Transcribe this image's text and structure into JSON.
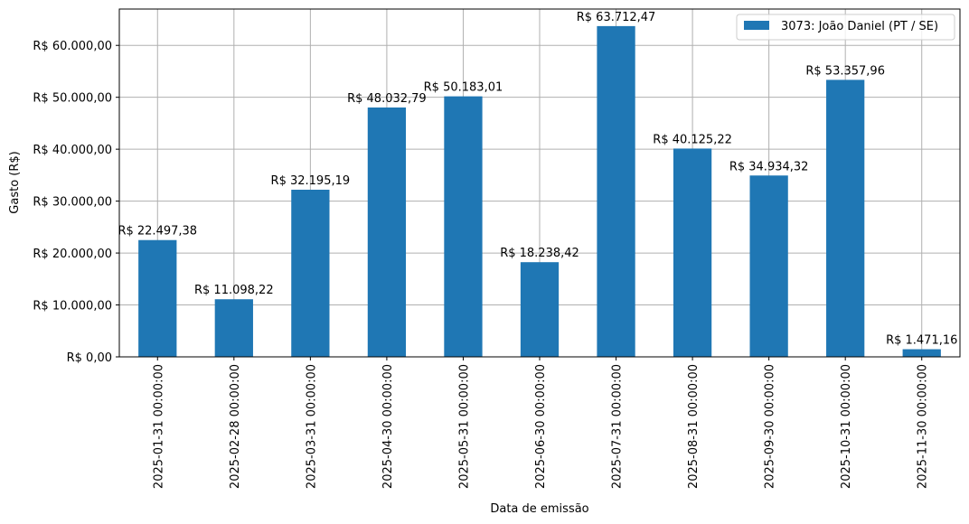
{
  "chart_data": {
    "type": "bar",
    "title": "",
    "xlabel": "Data de emissão",
    "ylabel": "Gasto (R$)",
    "ylim": [
      0,
      67000
    ],
    "grid": true,
    "legend_position": "upper right",
    "bar_color": "#1f77b4",
    "categories": [
      "2025-01-31 00:00:00",
      "2025-02-28 00:00:00",
      "2025-03-31 00:00:00",
      "2025-04-30 00:00:00",
      "2025-05-31 00:00:00",
      "2025-06-30 00:00:00",
      "2025-07-31 00:00:00",
      "2025-08-31 00:00:00",
      "2025-09-30 00:00:00",
      "2025-10-31 00:00:00",
      "2025-11-30 00:00:00"
    ],
    "series": [
      {
        "name": "3073: João Daniel (PT / SE)",
        "values": [
          22497.38,
          11098.22,
          32195.19,
          48032.79,
          50183.01,
          18238.42,
          63712.47,
          40125.22,
          34934.32,
          53357.96,
          1471.16
        ],
        "value_labels": [
          "R$ 22.497,38",
          "R$ 11.098,22",
          "R$ 32.195,19",
          "R$ 48.032,79",
          "R$ 50.183,01",
          "R$ 18.238,42",
          "R$ 63.712,47",
          "R$ 40.125,22",
          "R$ 34.934,32",
          "R$ 53.357,96",
          "R$ 1.471,16"
        ]
      }
    ],
    "y_ticks": [
      {
        "value": 0,
        "label": "R$ 0,00"
      },
      {
        "value": 10000,
        "label": "R$ 10.000,00"
      },
      {
        "value": 20000,
        "label": "R$ 20.000,00"
      },
      {
        "value": 30000,
        "label": "R$ 30.000,00"
      },
      {
        "value": 40000,
        "label": "R$ 40.000,00"
      },
      {
        "value": 50000,
        "label": "R$ 50.000,00"
      },
      {
        "value": 60000,
        "label": "R$ 60.000,00"
      }
    ]
  }
}
